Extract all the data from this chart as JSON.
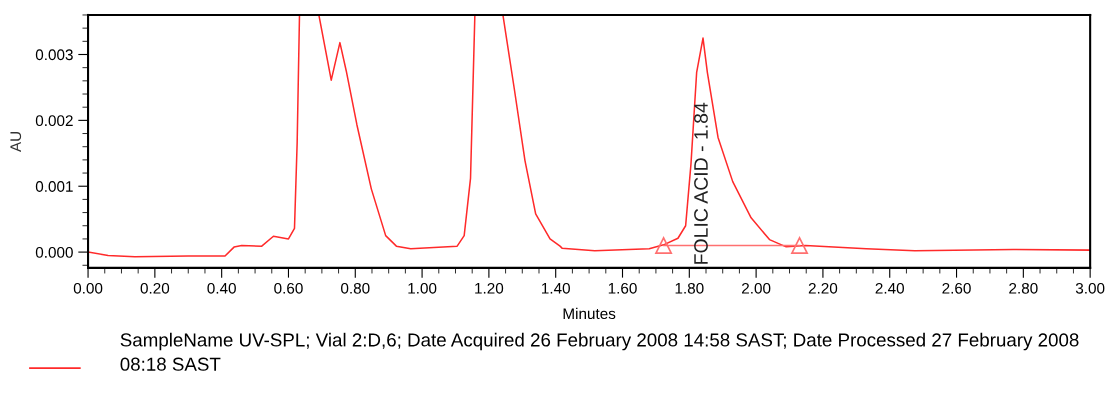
{
  "chart_data": {
    "type": "line",
    "xlabel": "Minutes",
    "ylabel": "AU",
    "xlim": [
      0,
      3
    ],
    "ylim": [
      -0.00024,
      0.0036
    ],
    "xticks": [
      {
        "value": 0,
        "label": "0.00"
      },
      {
        "value": 0.05,
        "label": null
      },
      {
        "value": 0.1,
        "label": null
      },
      {
        "value": 0.15,
        "label": null
      },
      {
        "value": 0.2,
        "label": "0.20"
      },
      {
        "value": 0.25,
        "label": null
      },
      {
        "value": 0.3,
        "label": null
      },
      {
        "value": 0.35,
        "label": null
      },
      {
        "value": 0.4,
        "label": "0.40"
      },
      {
        "value": 0.45,
        "label": null
      },
      {
        "value": 0.5,
        "label": null
      },
      {
        "value": 0.55,
        "label": null
      },
      {
        "value": 0.6,
        "label": "0.60"
      },
      {
        "value": 0.65,
        "label": null
      },
      {
        "value": 0.7,
        "label": null
      },
      {
        "value": 0.75,
        "label": null
      },
      {
        "value": 0.8,
        "label": "0.80"
      },
      {
        "value": 0.85,
        "label": null
      },
      {
        "value": 0.9,
        "label": null
      },
      {
        "value": 0.95,
        "label": null
      },
      {
        "value": 1.0,
        "label": "1.00"
      },
      {
        "value": 1.05,
        "label": null
      },
      {
        "value": 1.1,
        "label": null
      },
      {
        "value": 1.15,
        "label": null
      },
      {
        "value": 1.2,
        "label": "1.20"
      },
      {
        "value": 1.25,
        "label": null
      },
      {
        "value": 1.3,
        "label": null
      },
      {
        "value": 1.35,
        "label": null
      },
      {
        "value": 1.4,
        "label": "1.40"
      },
      {
        "value": 1.45,
        "label": null
      },
      {
        "value": 1.5,
        "label": null
      },
      {
        "value": 1.55,
        "label": null
      },
      {
        "value": 1.6,
        "label": "1.60"
      },
      {
        "value": 1.65,
        "label": null
      },
      {
        "value": 1.7,
        "label": null
      },
      {
        "value": 1.75,
        "label": null
      },
      {
        "value": 1.8,
        "label": "1.80"
      },
      {
        "value": 1.85,
        "label": null
      },
      {
        "value": 1.9,
        "label": null
      },
      {
        "value": 1.95,
        "label": null
      },
      {
        "value": 2.0,
        "label": "2.00"
      },
      {
        "value": 2.05,
        "label": null
      },
      {
        "value": 2.1,
        "label": null
      },
      {
        "value": 2.15,
        "label": null
      },
      {
        "value": 2.2,
        "label": "2.20"
      },
      {
        "value": 2.25,
        "label": null
      },
      {
        "value": 2.3,
        "label": null
      },
      {
        "value": 2.35,
        "label": null
      },
      {
        "value": 2.4,
        "label": "2.40"
      },
      {
        "value": 2.45,
        "label": null
      },
      {
        "value": 2.5,
        "label": null
      },
      {
        "value": 2.55,
        "label": null
      },
      {
        "value": 2.6,
        "label": "2.60"
      },
      {
        "value": 2.65,
        "label": null
      },
      {
        "value": 2.7,
        "label": null
      },
      {
        "value": 2.75,
        "label": null
      },
      {
        "value": 2.8,
        "label": "2.80"
      },
      {
        "value": 2.85,
        "label": null
      },
      {
        "value": 2.9,
        "label": null
      },
      {
        "value": 2.95,
        "label": null
      },
      {
        "value": 3.0,
        "label": "3.00"
      }
    ],
    "yticks": [
      {
        "value": -0.0002,
        "label": null
      },
      {
        "value": 0,
        "label": "0.000"
      },
      {
        "value": 0.0002,
        "label": null
      },
      {
        "value": 0.0004,
        "label": null
      },
      {
        "value": 0.0006,
        "label": null
      },
      {
        "value": 0.0008,
        "label": null
      },
      {
        "value": 0.001,
        "label": "0.001"
      },
      {
        "value": 0.0012,
        "label": null
      },
      {
        "value": 0.0014,
        "label": null
      },
      {
        "value": 0.0016,
        "label": null
      },
      {
        "value": 0.0018,
        "label": null
      },
      {
        "value": 0.002,
        "label": "0.002"
      },
      {
        "value": 0.0022,
        "label": null
      },
      {
        "value": 0.0024,
        "label": null
      },
      {
        "value": 0.0026,
        "label": null
      },
      {
        "value": 0.0028,
        "label": null
      },
      {
        "value": 0.003,
        "label": "0.003"
      },
      {
        "value": 0.0032,
        "label": null
      },
      {
        "value": 0.0034,
        "label": null
      },
      {
        "value": 0.0036,
        "label": null
      }
    ],
    "grid": false,
    "legend": "bottom",
    "series": [
      {
        "name": "SampleName UV-SPL; Vial 2:D,6; Date Acquired 26 February 2008 14:58 SAST; Date Processed 27 February 2008 08:18 SAST",
        "color": "#ff2a2a",
        "marker": "none",
        "x": [
          0,
          0.06,
          0.14,
          0.3,
          0.41,
          0.437,
          0.46,
          0.52,
          0.555,
          0.6,
          0.618,
          0.626,
          0.633,
          0.66,
          0.691,
          0.728,
          0.754,
          0.773,
          0.805,
          0.848,
          0.891,
          0.923,
          0.966,
          1.105,
          1.126,
          1.145,
          1.158,
          1.2,
          1.242,
          1.276,
          1.308,
          1.34,
          1.383,
          1.413,
          1.419,
          1.517,
          1.68,
          1.723,
          1.766,
          1.789,
          1.805,
          1.822,
          1.841,
          1.854,
          1.886,
          1.93,
          1.985,
          2.04,
          2.09,
          2.148,
          2.33,
          2.475,
          2.77,
          3.0
        ],
        "values": [
          0,
          -5e-05,
          -7e-05,
          -6e-05,
          -6e-05,
          7.6e-05,
          0.0001,
          9e-05,
          0.00024,
          0.0002,
          0.00036,
          0.00166,
          0.0036,
          null,
          0.0036,
          0.00261,
          0.00318,
          0.00275,
          0.00193,
          0.00096,
          0.00025,
          9e-05,
          5e-05,
          9e-05,
          0.00025,
          0.00112,
          0.0036,
          null,
          0.0036,
          0.00248,
          0.00139,
          0.00058,
          0.0002,
          9e-05,
          6e-05,
          2e-05,
          5e-05,
          0.00011,
          0.00021,
          0.0004,
          0.00134,
          0.00273,
          0.00325,
          0.00273,
          0.00174,
          0.00107,
          0.00052,
          0.00019,
          8e-05,
          0.0001,
          5e-05,
          2e-05,
          4e-05,
          3e-05
        ]
      },
      {
        "color": "#ff7070",
        "marker": "triangle",
        "x": [
          1.723,
          2.13
        ],
        "values": [
          0.0001,
          0.0001
        ]
      }
    ],
    "annotations": [
      "FOLIC ACID - 1.84"
    ]
  }
}
